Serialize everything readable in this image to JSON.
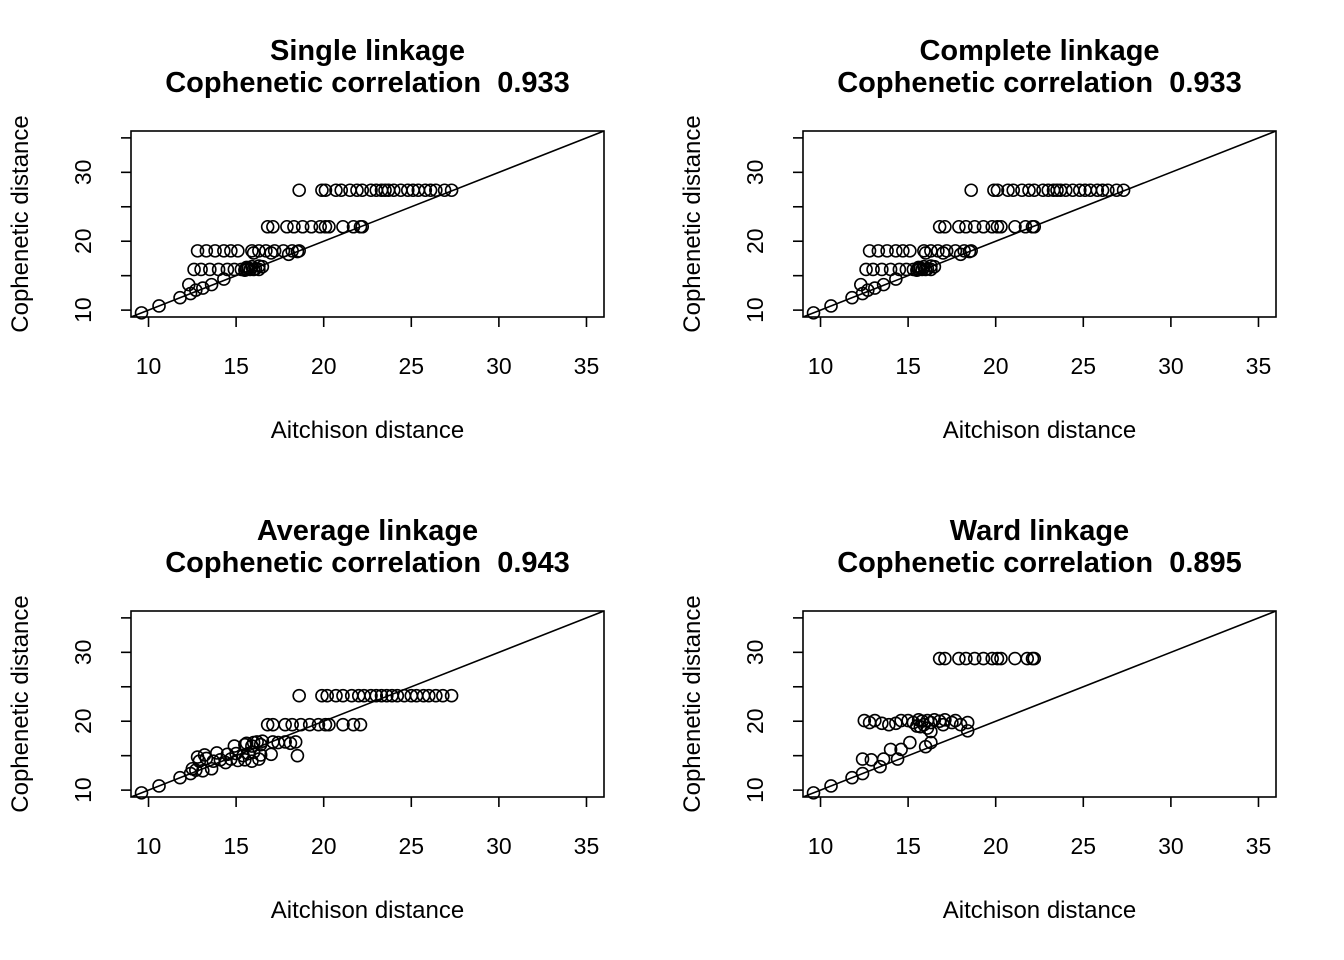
{
  "chart_data": [
    {
      "type": "scatter",
      "title": "Single linkage",
      "subtitle_prefix": "Cophenetic correlation",
      "correlation": "0.933",
      "xlabel": "Aitchison distance",
      "ylabel": "Cophenetic distance",
      "xlim": [
        9,
        36
      ],
      "ylim": [
        9,
        36
      ],
      "xticks": [
        10,
        15,
        20,
        25,
        30,
        35
      ],
      "yticks": [
        10,
        15,
        20,
        25,
        30,
        35
      ],
      "yticklabels": [
        "10",
        "20",
        "30"
      ],
      "reference_line": "y = x",
      "points": [
        [
          9.6,
          9.6
        ],
        [
          10.6,
          10.6
        ],
        [
          11.8,
          11.8
        ],
        [
          12.4,
          12.4
        ],
        [
          12.3,
          13.7
        ],
        [
          12.7,
          12.9
        ],
        [
          13.1,
          13.2
        ],
        [
          13.6,
          13.7
        ],
        [
          14.3,
          14.5
        ],
        [
          12.6,
          15.9
        ],
        [
          13.0,
          15.9
        ],
        [
          13.5,
          15.9
        ],
        [
          14.0,
          15.9
        ],
        [
          14.5,
          15.9
        ],
        [
          14.9,
          15.9
        ],
        [
          15.3,
          15.9
        ],
        [
          15.6,
          15.9
        ],
        [
          15.8,
          15.9
        ],
        [
          16.0,
          15.9
        ],
        [
          16.3,
          15.9
        ],
        [
          15.5,
          15.8
        ],
        [
          15.7,
          16.1
        ],
        [
          15.9,
          16.3
        ],
        [
          16.1,
          16.0
        ],
        [
          16.3,
          16.4
        ],
        [
          16.5,
          16.3
        ],
        [
          15.6,
          16.2
        ],
        [
          12.8,
          18.6
        ],
        [
          13.3,
          18.6
        ],
        [
          13.8,
          18.6
        ],
        [
          14.3,
          18.6
        ],
        [
          14.7,
          18.6
        ],
        [
          15.1,
          18.6
        ],
        [
          15.9,
          18.6
        ],
        [
          16.3,
          18.6
        ],
        [
          16.7,
          18.6
        ],
        [
          17.2,
          18.6
        ],
        [
          17.7,
          18.6
        ],
        [
          18.2,
          18.6
        ],
        [
          18.6,
          18.6
        ],
        [
          16.0,
          18.3
        ],
        [
          17.0,
          18.3
        ],
        [
          18.0,
          18.1
        ],
        [
          18.5,
          18.5
        ],
        [
          16.8,
          22.1
        ],
        [
          17.1,
          22.1
        ],
        [
          17.9,
          22.1
        ],
        [
          18.3,
          22.1
        ],
        [
          18.8,
          22.1
        ],
        [
          19.3,
          22.1
        ],
        [
          19.8,
          22.1
        ],
        [
          20.1,
          22.1
        ],
        [
          20.3,
          22.1
        ],
        [
          21.1,
          22.1
        ],
        [
          21.7,
          22.1
        ],
        [
          22.1,
          22.1
        ],
        [
          22.2,
          22.1
        ],
        [
          18.6,
          27.4
        ],
        [
          19.9,
          27.4
        ],
        [
          20.1,
          27.4
        ],
        [
          20.7,
          27.4
        ],
        [
          21.0,
          27.4
        ],
        [
          21.5,
          27.4
        ],
        [
          21.9,
          27.4
        ],
        [
          22.2,
          27.4
        ],
        [
          22.7,
          27.4
        ],
        [
          23.0,
          27.4
        ],
        [
          23.3,
          27.4
        ],
        [
          23.5,
          27.4
        ],
        [
          23.7,
          27.4
        ],
        [
          24.0,
          27.4
        ],
        [
          24.4,
          27.4
        ],
        [
          24.8,
          27.4
        ],
        [
          25.1,
          27.4
        ],
        [
          25.4,
          27.4
        ],
        [
          25.8,
          27.4
        ],
        [
          26.1,
          27.4
        ],
        [
          26.4,
          27.4
        ],
        [
          26.9,
          27.4
        ],
        [
          27.3,
          27.4
        ]
      ]
    },
    {
      "type": "scatter",
      "title": "Complete linkage",
      "subtitle_prefix": "Cophenetic correlation",
      "correlation": "0.933",
      "xlabel": "Aitchison distance",
      "ylabel": "Cophenetic distance",
      "xlim": [
        9,
        36
      ],
      "ylim": [
        9,
        36
      ],
      "xticks": [
        10,
        15,
        20,
        25,
        30,
        35
      ],
      "yticks": [
        10,
        15,
        20,
        25,
        30,
        35
      ],
      "yticklabels": [
        "10",
        "20",
        "30"
      ],
      "reference_line": "y = x",
      "points": [
        [
          9.6,
          9.6
        ],
        [
          10.6,
          10.6
        ],
        [
          11.8,
          11.8
        ],
        [
          12.4,
          12.4
        ],
        [
          12.3,
          13.7
        ],
        [
          12.7,
          12.9
        ],
        [
          13.1,
          13.2
        ],
        [
          13.6,
          13.7
        ],
        [
          14.3,
          14.5
        ],
        [
          12.6,
          15.9
        ],
        [
          13.0,
          15.9
        ],
        [
          13.5,
          15.9
        ],
        [
          14.0,
          15.9
        ],
        [
          14.5,
          15.9
        ],
        [
          14.9,
          15.9
        ],
        [
          15.3,
          15.9
        ],
        [
          15.6,
          15.9
        ],
        [
          15.8,
          15.9
        ],
        [
          16.0,
          15.9
        ],
        [
          16.3,
          15.9
        ],
        [
          15.5,
          15.8
        ],
        [
          15.7,
          16.1
        ],
        [
          15.9,
          16.3
        ],
        [
          16.1,
          16.0
        ],
        [
          16.3,
          16.4
        ],
        [
          16.5,
          16.3
        ],
        [
          15.6,
          16.2
        ],
        [
          12.8,
          18.6
        ],
        [
          13.3,
          18.6
        ],
        [
          13.8,
          18.6
        ],
        [
          14.3,
          18.6
        ],
        [
          14.7,
          18.6
        ],
        [
          15.1,
          18.6
        ],
        [
          15.9,
          18.6
        ],
        [
          16.3,
          18.6
        ],
        [
          16.7,
          18.6
        ],
        [
          17.2,
          18.6
        ],
        [
          17.7,
          18.6
        ],
        [
          18.2,
          18.6
        ],
        [
          18.6,
          18.6
        ],
        [
          16.0,
          18.3
        ],
        [
          17.0,
          18.3
        ],
        [
          18.0,
          18.1
        ],
        [
          18.5,
          18.5
        ],
        [
          16.8,
          22.1
        ],
        [
          17.1,
          22.1
        ],
        [
          17.9,
          22.1
        ],
        [
          18.3,
          22.1
        ],
        [
          18.8,
          22.1
        ],
        [
          19.3,
          22.1
        ],
        [
          19.8,
          22.1
        ],
        [
          20.1,
          22.1
        ],
        [
          20.3,
          22.1
        ],
        [
          21.1,
          22.1
        ],
        [
          21.7,
          22.1
        ],
        [
          22.1,
          22.1
        ],
        [
          22.2,
          22.1
        ],
        [
          18.6,
          27.4
        ],
        [
          19.9,
          27.4
        ],
        [
          20.1,
          27.4
        ],
        [
          20.7,
          27.4
        ],
        [
          21.0,
          27.4
        ],
        [
          21.5,
          27.4
        ],
        [
          21.9,
          27.4
        ],
        [
          22.2,
          27.4
        ],
        [
          22.7,
          27.4
        ],
        [
          23.0,
          27.4
        ],
        [
          23.3,
          27.4
        ],
        [
          23.5,
          27.4
        ],
        [
          23.7,
          27.4
        ],
        [
          24.0,
          27.4
        ],
        [
          24.4,
          27.4
        ],
        [
          24.8,
          27.4
        ],
        [
          25.1,
          27.4
        ],
        [
          25.4,
          27.4
        ],
        [
          25.8,
          27.4
        ],
        [
          26.1,
          27.4
        ],
        [
          26.4,
          27.4
        ],
        [
          26.9,
          27.4
        ],
        [
          27.3,
          27.4
        ]
      ]
    },
    {
      "type": "scatter",
      "title": "Average linkage",
      "subtitle_prefix": "Cophenetic correlation",
      "correlation": "0.943",
      "xlabel": "Aitchison distance",
      "ylabel": "Cophenetic distance",
      "xlim": [
        9,
        36
      ],
      "ylim": [
        9,
        36
      ],
      "xticks": [
        10,
        15,
        20,
        25,
        30,
        35
      ],
      "yticks": [
        10,
        15,
        20,
        25,
        30,
        35
      ],
      "yticklabels": [
        "10",
        "20",
        "30"
      ],
      "reference_line": "y = x",
      "points": [
        [
          9.6,
          9.6
        ],
        [
          10.6,
          10.6
        ],
        [
          11.8,
          11.8
        ],
        [
          12.4,
          12.4
        ],
        [
          12.7,
          12.9
        ],
        [
          12.5,
          13.1
        ],
        [
          13.1,
          12.8
        ],
        [
          13.6,
          13.1
        ],
        [
          12.9,
          14.2
        ],
        [
          13.3,
          14.6
        ],
        [
          13.7,
          14.2
        ],
        [
          14.1,
          14.4
        ],
        [
          14.4,
          14.0
        ],
        [
          14.7,
          14.5
        ],
        [
          15.1,
          14.3
        ],
        [
          15.5,
          14.4
        ],
        [
          15.9,
          14.2
        ],
        [
          16.3,
          14.5
        ],
        [
          12.8,
          14.8
        ],
        [
          13.2,
          15.1
        ],
        [
          13.9,
          15.4
        ],
        [
          14.5,
          15.2
        ],
        [
          15.0,
          15.3
        ],
        [
          15.4,
          15.0
        ],
        [
          15.7,
          15.3
        ],
        [
          16.0,
          15.5
        ],
        [
          16.4,
          15.1
        ],
        [
          17.0,
          15.2
        ],
        [
          18.5,
          15.0
        ],
        [
          14.9,
          16.4
        ],
        [
          15.5,
          16.6
        ],
        [
          15.9,
          16.4
        ],
        [
          16.4,
          16.6
        ],
        [
          15.6,
          16.8
        ],
        [
          16.0,
          16.9
        ],
        [
          16.2,
          17.0
        ],
        [
          16.5,
          17.1
        ],
        [
          17.1,
          17.0
        ],
        [
          17.4,
          16.9
        ],
        [
          17.8,
          17.0
        ],
        [
          18.1,
          16.8
        ],
        [
          18.4,
          17.0
        ],
        [
          16.8,
          19.5
        ],
        [
          17.1,
          19.5
        ],
        [
          17.8,
          19.5
        ],
        [
          18.2,
          19.5
        ],
        [
          18.7,
          19.5
        ],
        [
          19.2,
          19.5
        ],
        [
          19.7,
          19.5
        ],
        [
          20.1,
          19.5
        ],
        [
          20.3,
          19.5
        ],
        [
          21.1,
          19.5
        ],
        [
          21.7,
          19.5
        ],
        [
          22.1,
          19.5
        ],
        [
          18.6,
          23.7
        ],
        [
          19.9,
          23.7
        ],
        [
          20.2,
          23.7
        ],
        [
          20.7,
          23.7
        ],
        [
          21.1,
          23.7
        ],
        [
          21.6,
          23.7
        ],
        [
          22.0,
          23.7
        ],
        [
          22.3,
          23.7
        ],
        [
          22.7,
          23.7
        ],
        [
          23.0,
          23.7
        ],
        [
          23.3,
          23.7
        ],
        [
          23.6,
          23.7
        ],
        [
          23.9,
          23.7
        ],
        [
          24.2,
          23.7
        ],
        [
          24.6,
          23.7
        ],
        [
          25.0,
          23.7
        ],
        [
          25.3,
          23.7
        ],
        [
          25.7,
          23.7
        ],
        [
          26.0,
          23.7
        ],
        [
          26.4,
          23.7
        ],
        [
          26.8,
          23.7
        ],
        [
          27.3,
          23.7
        ]
      ]
    },
    {
      "type": "scatter",
      "title": "Ward linkage",
      "subtitle_prefix": "Cophenetic correlation",
      "correlation": "0.895",
      "xlabel": "Aitchison distance",
      "ylabel": "Cophenetic distance",
      "xlim": [
        9,
        36
      ],
      "ylim": [
        9,
        36
      ],
      "xticks": [
        10,
        15,
        20,
        25,
        30,
        35
      ],
      "yticks": [
        10,
        15,
        20,
        25,
        30,
        35
      ],
      "yticklabels": [
        "10",
        "20",
        "30"
      ],
      "reference_line": "y = x",
      "points": [
        [
          9.6,
          9.6
        ],
        [
          10.6,
          10.6
        ],
        [
          11.8,
          11.8
        ],
        [
          12.4,
          12.4
        ],
        [
          12.4,
          14.5
        ],
        [
          12.9,
          14.4
        ],
        [
          13.4,
          13.4
        ],
        [
          13.6,
          14.5
        ],
        [
          14.0,
          15.9
        ],
        [
          14.4,
          14.5
        ],
        [
          14.6,
          15.9
        ],
        [
          15.1,
          16.9
        ],
        [
          16.0,
          16.3
        ],
        [
          16.3,
          16.9
        ],
        [
          16.3,
          18.5
        ],
        [
          18.4,
          18.6
        ],
        [
          12.5,
          20.1
        ],
        [
          12.8,
          19.8
        ],
        [
          13.1,
          20.1
        ],
        [
          13.5,
          19.7
        ],
        [
          13.9,
          19.5
        ],
        [
          14.3,
          19.7
        ],
        [
          14.6,
          20.1
        ],
        [
          15.0,
          20.1
        ],
        [
          15.3,
          19.8
        ],
        [
          15.6,
          20.2
        ],
        [
          15.8,
          20.0
        ],
        [
          15.9,
          19.5
        ],
        [
          16.1,
          20.1
        ],
        [
          16.3,
          19.8
        ],
        [
          16.5,
          20.2
        ],
        [
          15.7,
          19.2
        ],
        [
          16.1,
          19.0
        ],
        [
          15.5,
          19.3
        ],
        [
          17.1,
          20.2
        ],
        [
          17.0,
          19.5
        ],
        [
          17.7,
          20.1
        ],
        [
          18.0,
          19.5
        ],
        [
          18.4,
          19.8
        ],
        [
          17.5,
          19.8
        ],
        [
          16.8,
          20.0
        ],
        [
          16.8,
          29.1
        ],
        [
          17.1,
          29.1
        ],
        [
          17.9,
          29.1
        ],
        [
          18.3,
          29.1
        ],
        [
          18.8,
          29.1
        ],
        [
          19.3,
          29.1
        ],
        [
          19.8,
          29.1
        ],
        [
          20.1,
          29.1
        ],
        [
          20.3,
          29.1
        ],
        [
          21.1,
          29.1
        ],
        [
          21.8,
          29.1
        ],
        [
          22.1,
          29.1
        ],
        [
          22.2,
          29.1
        ]
      ]
    }
  ]
}
